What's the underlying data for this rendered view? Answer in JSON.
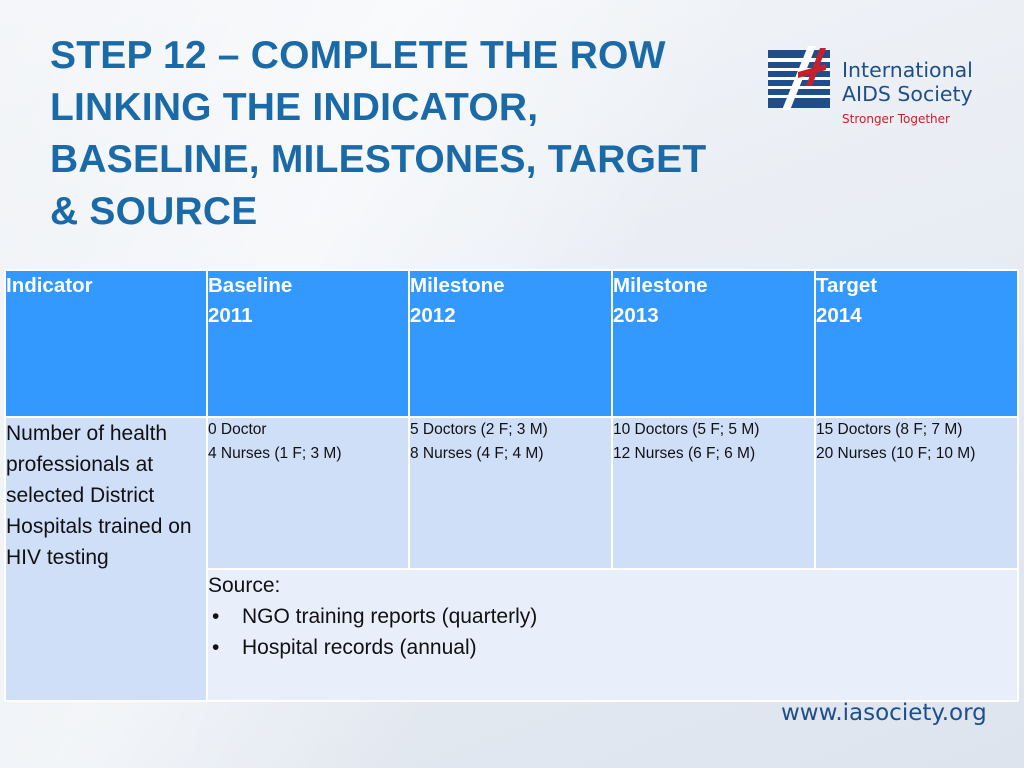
{
  "title": {
    "lines": [
      "STEP 12 – COMPLETE THE ROW",
      "LINKING THE INDICATOR,",
      "BASELINE, MILESTONES, TARGET",
      "& SOURCE"
    ]
  },
  "logo": {
    "name_line1": "International",
    "name_line2": "AIDS Society",
    "tagline": "Stronger Together",
    "colors": {
      "blue": "#1e4f8a",
      "red": "#c8202b",
      "light_blue": "#3b8fd4"
    }
  },
  "table": {
    "headers": [
      {
        "line1": "Indicator",
        "line2": ""
      },
      {
        "line1": "Baseline",
        "line2": "2011"
      },
      {
        "line1": "Milestone",
        "line2": "2012"
      },
      {
        "line1": "Milestone",
        "line2": "2013"
      },
      {
        "line1": "Target",
        "line2": "2014"
      }
    ],
    "indicator": "Number of health professionals at selected District Hospitals trained on HIV testing",
    "values": [
      {
        "line1": "0 Doctor",
        "line2": "4 Nurses (1 F; 3 M)"
      },
      {
        "line1": "5 Doctors (2 F; 3 M)",
        "line2": "8 Nurses (4 F; 4 M)"
      },
      {
        "line1": "10 Doctors (5 F; 5 M)",
        "line2": "12 Nurses (6 F; 6 M)"
      },
      {
        "line1": "15 Doctors (8 F; 7 M)",
        "line2": "20 Nurses (10 F; 10 M)"
      }
    ],
    "source": {
      "label": "Source:",
      "items": [
        "NGO training reports (quarterly)",
        "Hospital records (annual)"
      ]
    },
    "colors": {
      "header": "#3399ff",
      "row": "#cfdff8",
      "source_row": "#e9eefb"
    }
  },
  "footer": {
    "url": "www.iasociety.org"
  }
}
